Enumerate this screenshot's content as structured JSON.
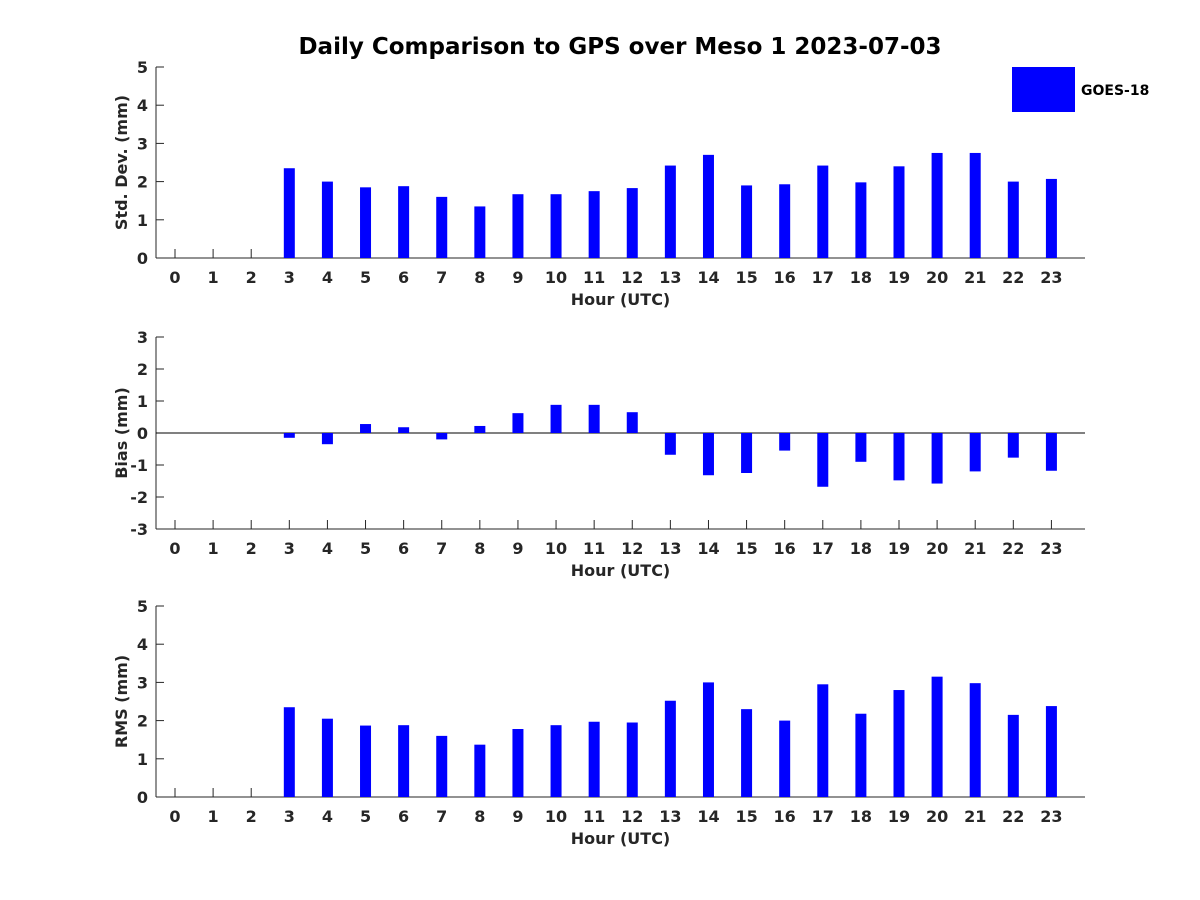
{
  "title": "Daily Comparison to GPS over Meso 1 2023-07-03",
  "legend": {
    "label": "GOES-18",
    "color": "#0000ff",
    "placement": "top-right"
  },
  "chart_data": [
    {
      "type": "bar",
      "xlabel": "Hour (UTC)",
      "ylabel": "Std. Dev. (mm)",
      "ylim": [
        0,
        5
      ],
      "yticks": [
        0,
        1,
        2,
        3,
        4,
        5
      ],
      "categories": [
        "0",
        "1",
        "2",
        "3",
        "4",
        "5",
        "6",
        "7",
        "8",
        "9",
        "10",
        "11",
        "12",
        "13",
        "14",
        "15",
        "16",
        "17",
        "18",
        "19",
        "20",
        "21",
        "22",
        "23"
      ],
      "series": [
        {
          "name": "GOES-18",
          "values": [
            null,
            null,
            null,
            2.35,
            2.0,
            1.85,
            1.88,
            1.6,
            1.35,
            1.67,
            1.67,
            1.75,
            1.83,
            2.42,
            2.7,
            1.9,
            1.93,
            2.42,
            1.98,
            2.4,
            2.75,
            2.75,
            2.0,
            2.07
          ]
        }
      ],
      "grid": false
    },
    {
      "type": "bar",
      "xlabel": "Hour (UTC)",
      "ylabel": "Bias (mm)",
      "ylim": [
        -3,
        3
      ],
      "yticks": [
        -3,
        -2,
        -1,
        0,
        1,
        2,
        3
      ],
      "categories": [
        "0",
        "1",
        "2",
        "3",
        "4",
        "5",
        "6",
        "7",
        "8",
        "9",
        "10",
        "11",
        "12",
        "13",
        "14",
        "15",
        "16",
        "17",
        "18",
        "19",
        "20",
        "21",
        "22",
        "23"
      ],
      "series": [
        {
          "name": "GOES-18",
          "values": [
            null,
            null,
            null,
            -0.15,
            -0.35,
            0.28,
            0.18,
            -0.2,
            0.22,
            0.62,
            0.88,
            0.88,
            0.65,
            -0.68,
            -1.32,
            -1.25,
            -0.55,
            -1.68,
            -0.9,
            -1.48,
            -1.58,
            -1.2,
            -0.77,
            -1.18
          ]
        }
      ],
      "grid": false
    },
    {
      "type": "bar",
      "xlabel": "Hour (UTC)",
      "ylabel": "RMS (mm)",
      "ylim": [
        0,
        5
      ],
      "yticks": [
        0,
        1,
        2,
        3,
        4,
        5
      ],
      "categories": [
        "0",
        "1",
        "2",
        "3",
        "4",
        "5",
        "6",
        "7",
        "8",
        "9",
        "10",
        "11",
        "12",
        "13",
        "14",
        "15",
        "16",
        "17",
        "18",
        "19",
        "20",
        "21",
        "22",
        "23"
      ],
      "series": [
        {
          "name": "GOES-18",
          "values": [
            null,
            null,
            null,
            2.35,
            2.05,
            1.87,
            1.88,
            1.6,
            1.37,
            1.78,
            1.88,
            1.97,
            1.95,
            2.52,
            3.0,
            2.3,
            2.0,
            2.95,
            2.18,
            2.8,
            3.15,
            2.98,
            2.15,
            2.38
          ]
        }
      ],
      "grid": false
    }
  ]
}
